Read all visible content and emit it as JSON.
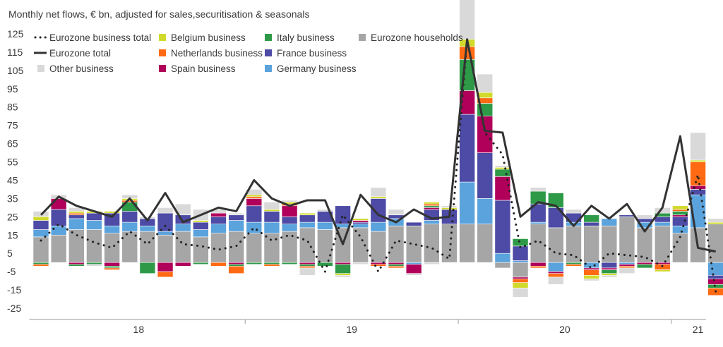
{
  "chart_data": {
    "type": "bar",
    "title": "Monthly net flows, € bn, adjusted for sales,securitisation & seasonals",
    "xlabel": "",
    "ylabel": "",
    "ylim": [
      -25,
      125
    ],
    "yticks": [
      125,
      115,
      105,
      95,
      85,
      75,
      65,
      55,
      45,
      35,
      25,
      15,
      5,
      -5,
      -15,
      -25
    ],
    "ytick_labels": [
      "125",
      "115",
      "105",
      "95",
      "85",
      "75",
      "65",
      "55",
      "45",
      "35",
      "25",
      "15",
      "5",
      "-5",
      "-15",
      "-25"
    ],
    "year_labels": [
      {
        "label": "18",
        "start": 0,
        "end": 11
      },
      {
        "label": "19",
        "start": 12,
        "end": 23
      },
      {
        "label": "20",
        "start": 24,
        "end": 35
      },
      {
        "label": "21",
        "start": 36,
        "end": 38
      }
    ],
    "legend_placement": "top-left",
    "grid": false,
    "months": [
      "2018-01",
      "2018-02",
      "2018-03",
      "2018-04",
      "2018-05",
      "2018-06",
      "2018-07",
      "2018-08",
      "2018-09",
      "2018-10",
      "2018-11",
      "2018-12",
      "2019-01",
      "2019-02",
      "2019-03",
      "2019-04",
      "2019-05",
      "2019-06",
      "2019-07",
      "2019-08",
      "2019-09",
      "2019-10",
      "2019-11",
      "2019-12",
      "2020-01",
      "2020-02",
      "2020-03",
      "2020-04",
      "2020-05",
      "2020-06",
      "2020-07",
      "2020-08",
      "2020-09",
      "2020-10",
      "2020-11",
      "2020-12",
      "2021-01",
      "2021-02",
      "2021-03"
    ],
    "series": [
      {
        "name": "Eurozone households",
        "kind": "bar",
        "color": "#a6a6a6",
        "values": [
          14,
          15,
          18,
          18,
          16,
          17,
          17,
          15,
          17,
          14,
          16,
          17,
          16,
          16,
          17,
          19,
          18,
          19,
          19,
          17,
          20,
          20,
          21,
          21,
          21,
          21,
          -3,
          -8,
          21,
          19,
          20,
          20,
          20,
          25,
          19,
          20,
          16,
          19,
          21
        ]
      },
      {
        "name": "Germany business",
        "kind": "bar",
        "color": "#5ba3dc",
        "values": [
          4,
          5,
          6,
          5,
          4,
          5,
          3,
          2,
          4,
          4,
          5,
          6,
          6,
          6,
          4,
          3,
          4,
          2,
          2,
          5,
          4,
          -1,
          2,
          0,
          23,
          14,
          5,
          1,
          1,
          -5,
          2,
          -3,
          4,
          -1,
          3,
          2,
          4,
          18,
          -7
        ]
      },
      {
        "name": "France business",
        "kind": "bar",
        "color": "#4d4ba5",
        "values": [
          5,
          9,
          2,
          4,
          7,
          6,
          4,
          10,
          5,
          4,
          4,
          3,
          9,
          6,
          4,
          4,
          6,
          10,
          1,
          13,
          2,
          2,
          6,
          8,
          37,
          25,
          29,
          8,
          10,
          11,
          5,
          2,
          -3,
          1,
          2,
          3,
          5,
          3,
          -2
        ]
      },
      {
        "name": "Spain business",
        "kind": "bar",
        "color": "#b0005a",
        "values": [
          0,
          6,
          -1,
          0,
          -2,
          0,
          0,
          -5,
          -2,
          0,
          2,
          -1,
          4,
          0,
          6,
          -1,
          0,
          -1,
          1,
          -1,
          -1,
          -5,
          1,
          0,
          13,
          20,
          13,
          -1,
          -2,
          -1,
          0,
          -1,
          -1,
          -1,
          -1,
          -1,
          1,
          2,
          -3
        ]
      },
      {
        "name": "Italy business",
        "kind": "bar",
        "color": "#2e9a48",
        "values": [
          -1,
          0,
          -1,
          -1,
          -1,
          5,
          -6,
          0,
          0,
          -1,
          0,
          -1,
          -1,
          -1,
          -1,
          -1,
          -2,
          -5,
          0,
          0,
          -1,
          0,
          1,
          0,
          17,
          7,
          4,
          4,
          7,
          8,
          -1,
          4,
          -2,
          0,
          -2,
          2,
          2,
          0,
          -2
        ]
      },
      {
        "name": "Netherlands business",
        "kind": "bar",
        "color": "#ff6a13",
        "values": [
          -1,
          0,
          1,
          0,
          -1,
          1,
          0,
          -3,
          0,
          0,
          -2,
          -4,
          1,
          -1,
          1,
          -1,
          0,
          0,
          0,
          -1,
          -1,
          0,
          1,
          0,
          7,
          3,
          0,
          -2,
          -1,
          -2,
          -1,
          -3,
          0,
          -1,
          0,
          -3,
          1,
          13,
          -4
        ]
      },
      {
        "name": "Belgium business",
        "kind": "bar",
        "color": "#d1da2b",
        "values": [
          2,
          0,
          1,
          1,
          1,
          1,
          0,
          0,
          0,
          1,
          0,
          0,
          1,
          1,
          1,
          1,
          0,
          -1,
          1,
          1,
          0,
          0,
          1,
          1,
          4,
          3,
          1,
          -3,
          0,
          0,
          0,
          -2,
          -1,
          0,
          0,
          -1,
          2,
          1,
          1
        ]
      },
      {
        "name": "Other business",
        "kind": "bar",
        "color": "#d9d9d9",
        "values": [
          3,
          2,
          2,
          -1,
          0,
          2,
          1,
          3,
          6,
          6,
          2,
          1,
          3,
          4,
          1,
          -4,
          1,
          -1,
          -1,
          5,
          3,
          -1,
          -1,
          1,
          22,
          10,
          1,
          -5,
          2,
          -4,
          2,
          -1,
          -1,
          -3,
          2,
          3,
          0,
          15,
          2
        ]
      },
      {
        "name": "Eurozone business total",
        "kind": "dotted-line",
        "color": "#222222",
        "values": [
          12,
          21,
          15,
          11,
          8,
          17,
          10,
          20,
          10,
          9,
          7,
          9,
          19,
          12,
          15,
          12,
          -5,
          26,
          14,
          -5,
          12,
          10,
          8,
          2,
          122,
          71,
          59,
          8,
          12,
          5,
          4,
          -3,
          5,
          4,
          3,
          -2,
          14,
          48,
          -16
        ]
      },
      {
        "name": "Eurozone total",
        "kind": "line",
        "color": "#333333",
        "values": [
          26,
          36,
          31,
          28,
          25,
          35,
          23,
          38,
          22,
          26,
          30,
          28,
          45,
          35,
          31,
          34,
          34,
          10,
          37,
          26,
          22,
          29,
          24,
          25,
          122,
          72,
          71,
          25,
          33,
          31,
          20,
          31,
          24,
          32,
          17,
          30,
          69,
          8,
          6
        ]
      }
    ]
  }
}
